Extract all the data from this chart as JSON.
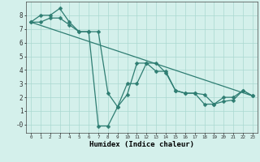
{
  "xlabel": "Humidex (Indice chaleur)",
  "background_color": "#d4f0eb",
  "grid_color": "#aad8d0",
  "line_color": "#2e7d72",
  "xlim": [
    -0.5,
    23.5
  ],
  "ylim": [
    -0.6,
    9.0
  ],
  "xtick_labels": [
    "0",
    "1",
    "2",
    "3",
    "4",
    "5",
    "6",
    "7",
    "8",
    "9",
    "10",
    "11",
    "12",
    "13",
    "14",
    "15",
    "16",
    "17",
    "18",
    "19",
    "20",
    "21",
    "22",
    "23"
  ],
  "ytick_values": [
    0,
    1,
    2,
    3,
    4,
    5,
    6,
    7,
    8
  ],
  "ytick_labels": [
    "-0",
    "1",
    "2",
    "3",
    "4",
    "5",
    "6",
    "7",
    "8"
  ],
  "line1_x": [
    0,
    1,
    2,
    3,
    4,
    5,
    6,
    7,
    8,
    9,
    10,
    11,
    12,
    13,
    14,
    15,
    16,
    17,
    18,
    19,
    20,
    21,
    22,
    23
  ],
  "line1_y": [
    7.5,
    8.0,
    8.0,
    8.5,
    7.5,
    6.8,
    6.8,
    -0.1,
    -0.1,
    1.3,
    2.2,
    4.5,
    4.5,
    4.5,
    3.8,
    2.5,
    2.3,
    2.3,
    2.2,
    1.5,
    2.0,
    2.0,
    2.5,
    2.1
  ],
  "line2_x": [
    0,
    1,
    2,
    3,
    4,
    5,
    6,
    7,
    8,
    9,
    10,
    11,
    12,
    13,
    14,
    15,
    16,
    17,
    18,
    19,
    20,
    21,
    22,
    23
  ],
  "line2_y": [
    7.5,
    7.5,
    7.8,
    7.8,
    7.3,
    6.8,
    6.8,
    6.8,
    2.3,
    1.3,
    3.0,
    3.0,
    4.5,
    3.9,
    3.9,
    2.5,
    2.3,
    2.3,
    1.5,
    1.5,
    1.7,
    1.8,
    2.5,
    2.1
  ],
  "line3_x": [
    0,
    23
  ],
  "line3_y": [
    7.5,
    2.1
  ]
}
